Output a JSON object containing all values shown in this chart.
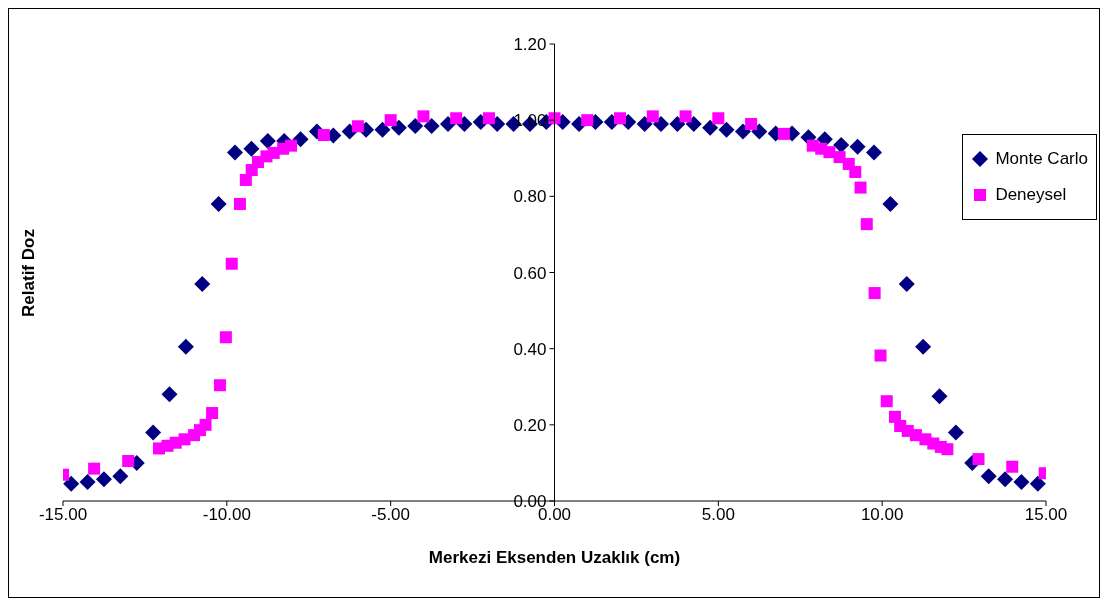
{
  "chart_data": {
    "type": "scatter",
    "xlabel": "Merkezi Eksenden Uzaklık (cm)",
    "ylabel": "Relatif Doz",
    "xlim": [
      -15,
      15
    ],
    "xticks": [
      {
        "value": -15,
        "label": "-15.00"
      },
      {
        "value": -10,
        "label": "-10.00"
      },
      {
        "value": -5,
        "label": "-5.00"
      },
      {
        "value": 0,
        "label": "0.00"
      },
      {
        "value": 5,
        "label": "5.00"
      },
      {
        "value": 10,
        "label": "10.00"
      },
      {
        "value": 15,
        "label": "15.00"
      }
    ],
    "ylim": [
      0,
      1.2
    ],
    "yticks": [
      {
        "value": 0,
        "label": "0.00"
      },
      {
        "value": 0.2,
        "label": "0.20"
      },
      {
        "value": 0.4,
        "label": "0.40"
      },
      {
        "value": 0.6,
        "label": "0.60"
      },
      {
        "value": 0.8,
        "label": "0.80"
      },
      {
        "value": 1,
        "label": "1.00"
      },
      {
        "value": 1.2,
        "label": "1.20"
      }
    ],
    "grid": false,
    "legend": "right",
    "series": [
      {
        "name": "Monte Carlo",
        "color": "#000080",
        "marker": "diamond",
        "x": [
          -14.75,
          -14.25,
          -13.75,
          -13.25,
          -12.75,
          -12.25,
          -11.75,
          -11.25,
          -10.75,
          -10.25,
          -9.75,
          -9.25,
          -8.75,
          -8.25,
          -7.75,
          -7.25,
          -6.75,
          -6.25,
          -5.75,
          -5.25,
          -4.75,
          -4.25,
          -3.75,
          -3.25,
          -2.75,
          -2.25,
          -1.75,
          -1.25,
          -0.75,
          -0.25,
          0.25,
          0.75,
          1.25,
          1.75,
          2.25,
          2.75,
          3.25,
          3.75,
          4.25,
          4.75,
          5.25,
          5.75,
          6.25,
          6.75,
          7.25,
          7.75,
          8.25,
          8.75,
          9.25,
          9.75,
          10.25,
          10.75,
          11.25,
          11.75,
          12.25,
          12.75,
          13.25,
          13.75,
          14.25,
          14.75
        ],
        "values": [
          0.045,
          0.05,
          0.057,
          0.065,
          0.1,
          0.18,
          0.28,
          0.405,
          0.57,
          0.78,
          0.915,
          0.925,
          0.945,
          0.945,
          0.95,
          0.97,
          0.96,
          0.97,
          0.975,
          0.975,
          0.98,
          0.985,
          0.985,
          0.99,
          0.99,
          0.995,
          0.99,
          0.99,
          0.99,
          0.995,
          0.995,
          0.99,
          0.995,
          0.995,
          0.995,
          0.99,
          0.99,
          0.99,
          0.99,
          0.98,
          0.975,
          0.97,
          0.97,
          0.965,
          0.965,
          0.955,
          0.95,
          0.935,
          0.93,
          0.915,
          0.78,
          0.57,
          0.405,
          0.275,
          0.18,
          0.1,
          0.065,
          0.057,
          0.05,
          0.045
        ]
      },
      {
        "name": "Deneysel",
        "color": "#ff00ff",
        "marker": "square",
        "x": [
          -15,
          -14.05,
          -13.01,
          -12.07,
          -11.81,
          -11.56,
          -11.29,
          -11,
          -10.82,
          -10.65,
          -10.45,
          -10.21,
          -10.03,
          -9.85,
          -9.6,
          -9.42,
          -9.24,
          -9.05,
          -8.79,
          -8.57,
          -8.28,
          -8.04,
          -7.04,
          -6,
          -5,
          -4,
          -3,
          -2,
          0,
          1,
          2,
          3,
          4,
          5,
          6,
          7,
          7.88,
          8.14,
          8.39,
          8.7,
          8.98,
          9.18,
          9.34,
          9.53,
          9.77,
          9.95,
          10.14,
          10.39,
          10.55,
          10.78,
          11.03,
          11.32,
          11.56,
          11.79,
          11.99,
          12.94,
          13.97,
          14.96
        ],
        "values": [
          0.069,
          0.085,
          0.105,
          0.138,
          0.145,
          0.153,
          0.162,
          0.173,
          0.186,
          0.2,
          0.231,
          0.304,
          0.43,
          0.623,
          0.78,
          0.843,
          0.869,
          0.89,
          0.905,
          0.914,
          0.925,
          0.933,
          0.961,
          0.984,
          1,
          1.01,
          1.005,
          1.005,
          1.005,
          1,
          1.005,
          1.01,
          1.01,
          1.005,
          0.99,
          0.964,
          0.933,
          0.925,
          0.916,
          0.903,
          0.885,
          0.864,
          0.823,
          0.727,
          0.546,
          0.382,
          0.262,
          0.221,
          0.197,
          0.184,
          0.173,
          0.162,
          0.151,
          0.142,
          0.136,
          0.11,
          0.09,
          0.073
        ]
      }
    ]
  }
}
